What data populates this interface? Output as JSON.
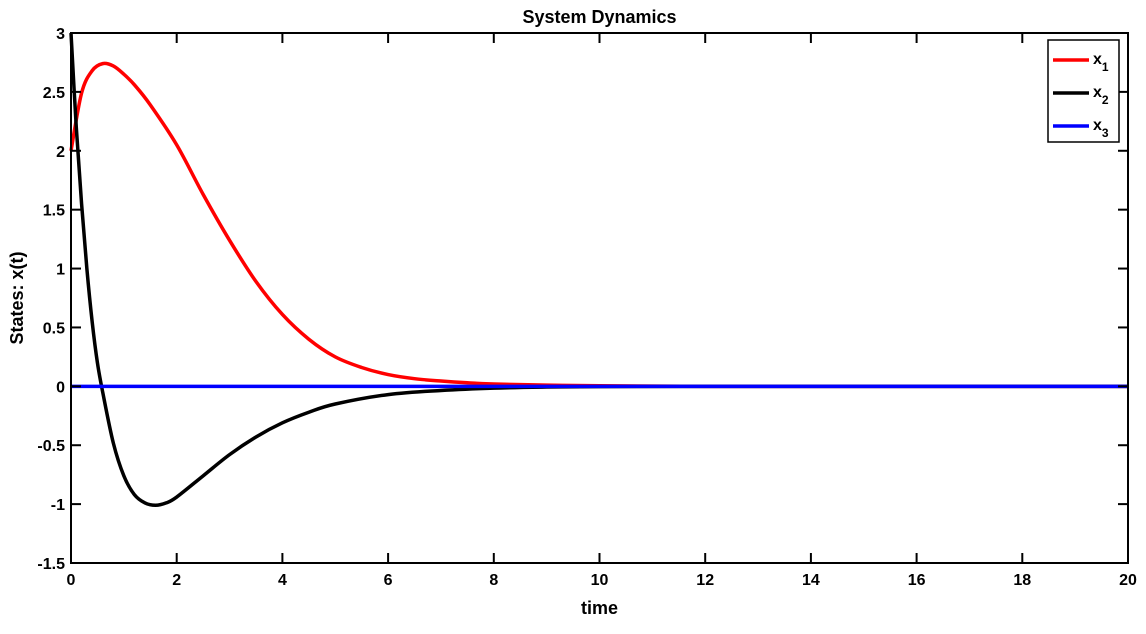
{
  "chart_data": {
    "type": "line",
    "title": "System Dynamics",
    "xlabel": "time",
    "ylabel": "States: x(t)",
    "xlim": [
      0,
      20
    ],
    "ylim": [
      -1.5,
      3
    ],
    "xticks": [
      0,
      2,
      4,
      6,
      8,
      10,
      12,
      14,
      16,
      18,
      20
    ],
    "yticks": [
      -1.5,
      -1,
      -0.5,
      0,
      0.5,
      1,
      1.5,
      2,
      2.5,
      3
    ],
    "grid": false,
    "legend_position": "top-right",
    "series": [
      {
        "name": "x",
        "subscript": "1",
        "color": "#ff0000",
        "x": [
          0,
          0.2,
          0.4,
          0.6,
          0.8,
          1.0,
          1.2,
          1.5,
          2.0,
          2.5,
          3.0,
          3.5,
          4.0,
          4.5,
          5.0,
          5.5,
          6.0,
          6.5,
          7.0,
          7.5,
          8.0,
          9.0,
          10.0,
          12.0,
          15.0,
          20.0
        ],
        "y": [
          2.0,
          2.49,
          2.68,
          2.74,
          2.72,
          2.65,
          2.56,
          2.39,
          2.05,
          1.63,
          1.24,
          0.89,
          0.61,
          0.4,
          0.25,
          0.16,
          0.1,
          0.065,
          0.045,
          0.03,
          0.02,
          0.01,
          0.005,
          0.0,
          0.0,
          0.0
        ]
      },
      {
        "name": "x",
        "subscript": "2",
        "color": "#000000",
        "x": [
          0,
          0.1,
          0.2,
          0.3,
          0.4,
          0.5,
          0.6,
          0.8,
          1.0,
          1.2,
          1.4,
          1.6,
          1.8,
          2.0,
          2.5,
          3.0,
          3.5,
          4.0,
          4.5,
          5.0,
          6.0,
          7.0,
          8.0,
          9.0,
          10.0,
          12.0,
          15.0,
          20.0
        ],
        "y": [
          3.0,
          2.2,
          1.55,
          1.0,
          0.55,
          0.2,
          -0.05,
          -0.48,
          -0.76,
          -0.92,
          -0.99,
          -1.01,
          -0.99,
          -0.94,
          -0.76,
          -0.58,
          -0.43,
          -0.31,
          -0.22,
          -0.15,
          -0.07,
          -0.035,
          -0.015,
          -0.006,
          -0.002,
          0.0,
          0.0,
          0.0
        ]
      },
      {
        "name": "x",
        "subscript": "3",
        "color": "#0000ff",
        "x": [
          0,
          20
        ],
        "y": [
          0,
          0
        ]
      }
    ]
  }
}
